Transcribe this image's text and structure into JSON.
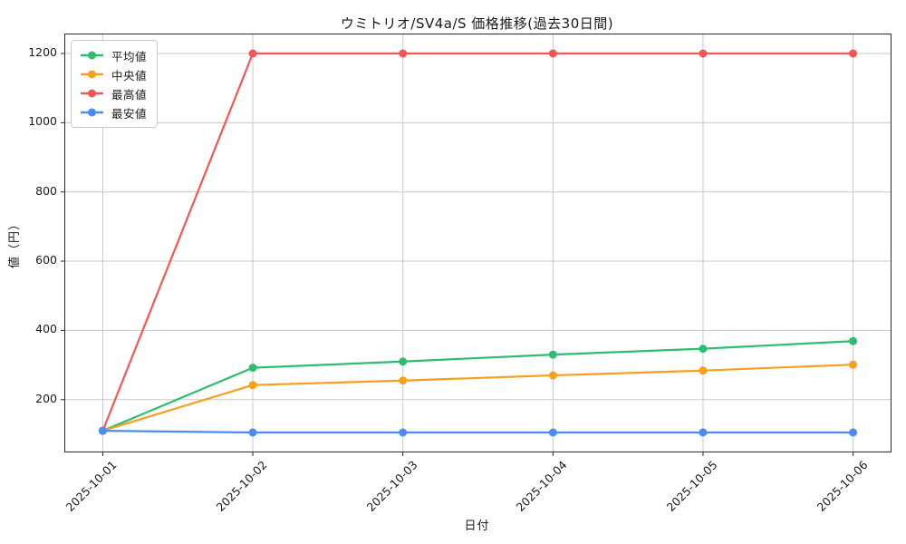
{
  "window": {
    "background": "#ffffff"
  },
  "colors": {
    "grid": "#c9c9c9",
    "spine": "#2b2b2b",
    "text": "#1a1a1a",
    "legend_border": "#cccccc",
    "legend_background": "#ffffff"
  },
  "chart_data": {
    "type": "line",
    "title": "ウミトリオ/SV4a/S 価格推移(過去30日間)",
    "xlabel": "日付",
    "ylabel": "値（円）",
    "categories": [
      "2025-10-01",
      "2025-10-02",
      "2025-10-03",
      "2025-10-04",
      "2025-10-05",
      "2025-10-06"
    ],
    "series": [
      {
        "key": "average",
        "name": "平均値",
        "color": "#2ebd6f",
        "values": [
          110,
          292,
          310,
          330,
          347,
          369
        ]
      },
      {
        "key": "median",
        "name": "中央値",
        "color": "#f8a01c",
        "values": [
          110,
          242,
          255,
          270,
          284,
          301
        ]
      },
      {
        "key": "highest",
        "name": "最高値",
        "color": "#f25757",
        "values": [
          110,
          1200,
          1200,
          1200,
          1200,
          1200
        ]
      },
      {
        "key": "lowest",
        "name": "最安値",
        "color": "#4a8cf2",
        "values": [
          110,
          105,
          105,
          105,
          105,
          105
        ]
      }
    ],
    "yticks": [
      200,
      400,
      600,
      800,
      1000,
      1200
    ],
    "ylim": [
      50,
      1255
    ],
    "xlim": [
      -0.25,
      5.25
    ],
    "grid": true,
    "legend_position": "upper left",
    "marker": "circle",
    "marker_radius": 4.5,
    "line_width": 2.2
  }
}
